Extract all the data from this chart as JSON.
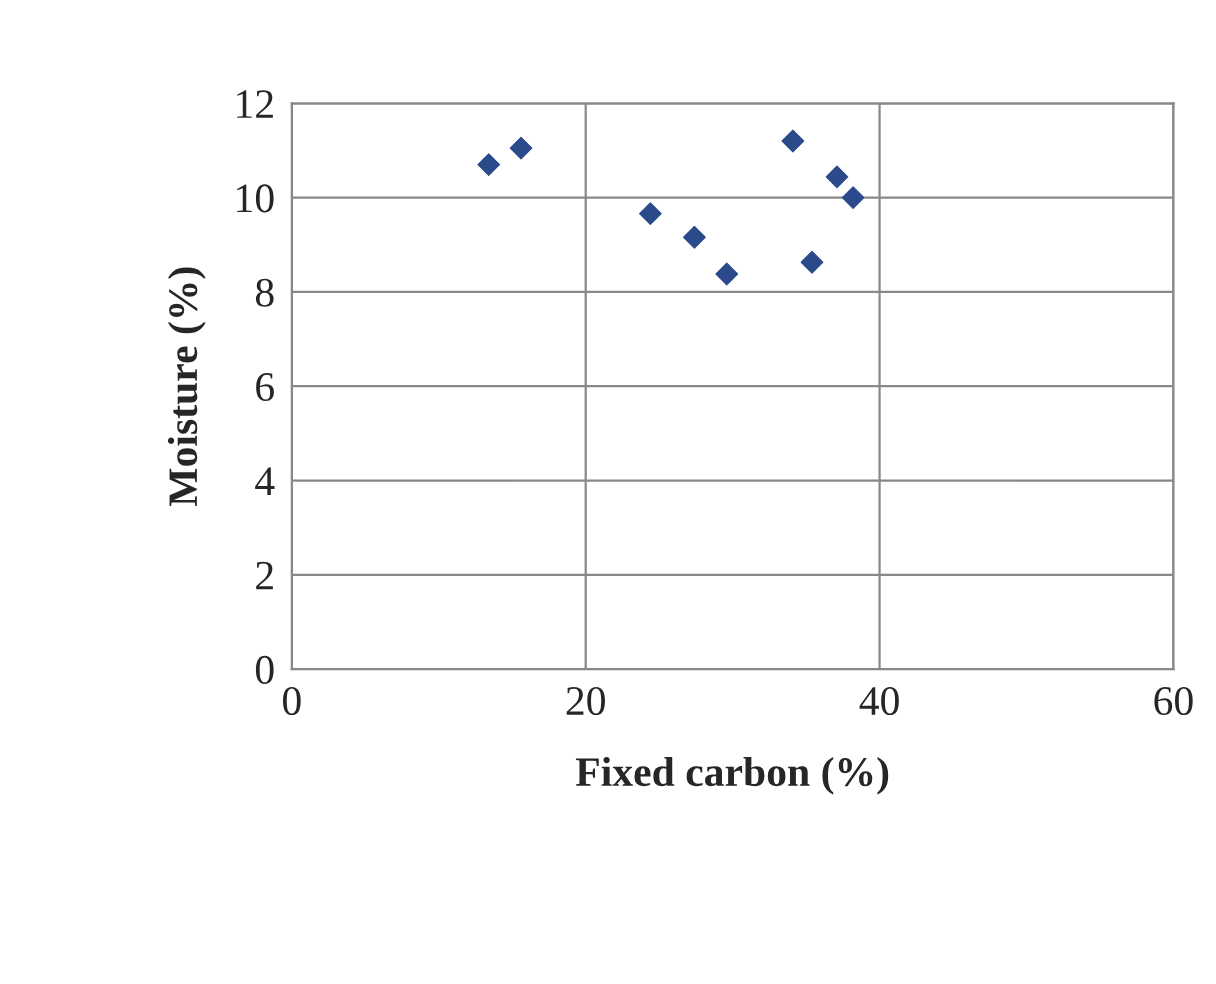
{
  "chart_data": {
    "type": "scatter",
    "xlabel": "Fixed carbon (%)",
    "ylabel": "Moisture (%)",
    "x": [
      13.4,
      15.6,
      24.4,
      27.4,
      29.6,
      34.1,
      35.4,
      37.1,
      38.2
    ],
    "values": [
      10.7,
      11.05,
      9.66,
      9.16,
      8.38,
      11.2,
      8.63,
      10.44,
      10.0
    ],
    "color": "#2b4a8c",
    "marker": "diamond",
    "xlim": [
      0,
      60
    ],
    "xticks": [
      0,
      20,
      40,
      60
    ],
    "ylim": [
      0,
      12
    ],
    "yticks": [
      0,
      2,
      4,
      6,
      8,
      10,
      12
    ],
    "grid": true,
    "legend": false
  }
}
